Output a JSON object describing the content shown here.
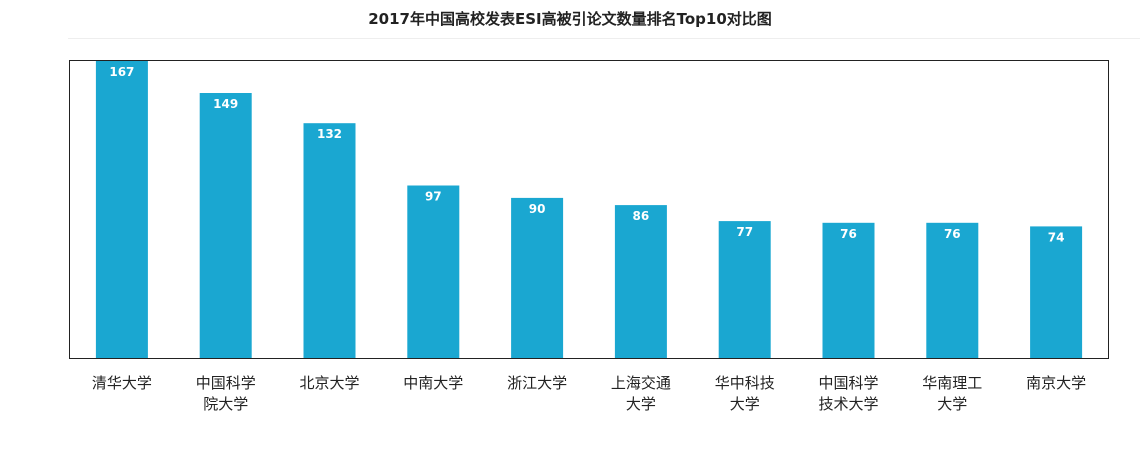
{
  "title": "2017年中国高校发表ESI高被引论文数量排名Top10对比图",
  "chart_data": {
    "type": "bar",
    "title": "2017年中国高校发表ESI高被引论文数量排名Top10对比图",
    "categories": [
      [
        "清华大学"
      ],
      [
        "中国科学",
        "院大学"
      ],
      [
        "北京大学"
      ],
      [
        "中南大学"
      ],
      [
        "浙江大学"
      ],
      [
        "上海交通",
        "大学"
      ],
      [
        "华中科技",
        "大学"
      ],
      [
        "中国科学",
        "技术大学"
      ],
      [
        "华南理工",
        "大学"
      ],
      [
        "南京大学"
      ]
    ],
    "values": [
      167,
      149,
      132,
      97,
      90,
      86,
      77,
      76,
      76,
      74
    ],
    "ylim": [
      0,
      167
    ],
    "bar_color": "#1aa7d1",
    "xlabel": "",
    "ylabel": "",
    "grid": false,
    "legend": "none"
  }
}
